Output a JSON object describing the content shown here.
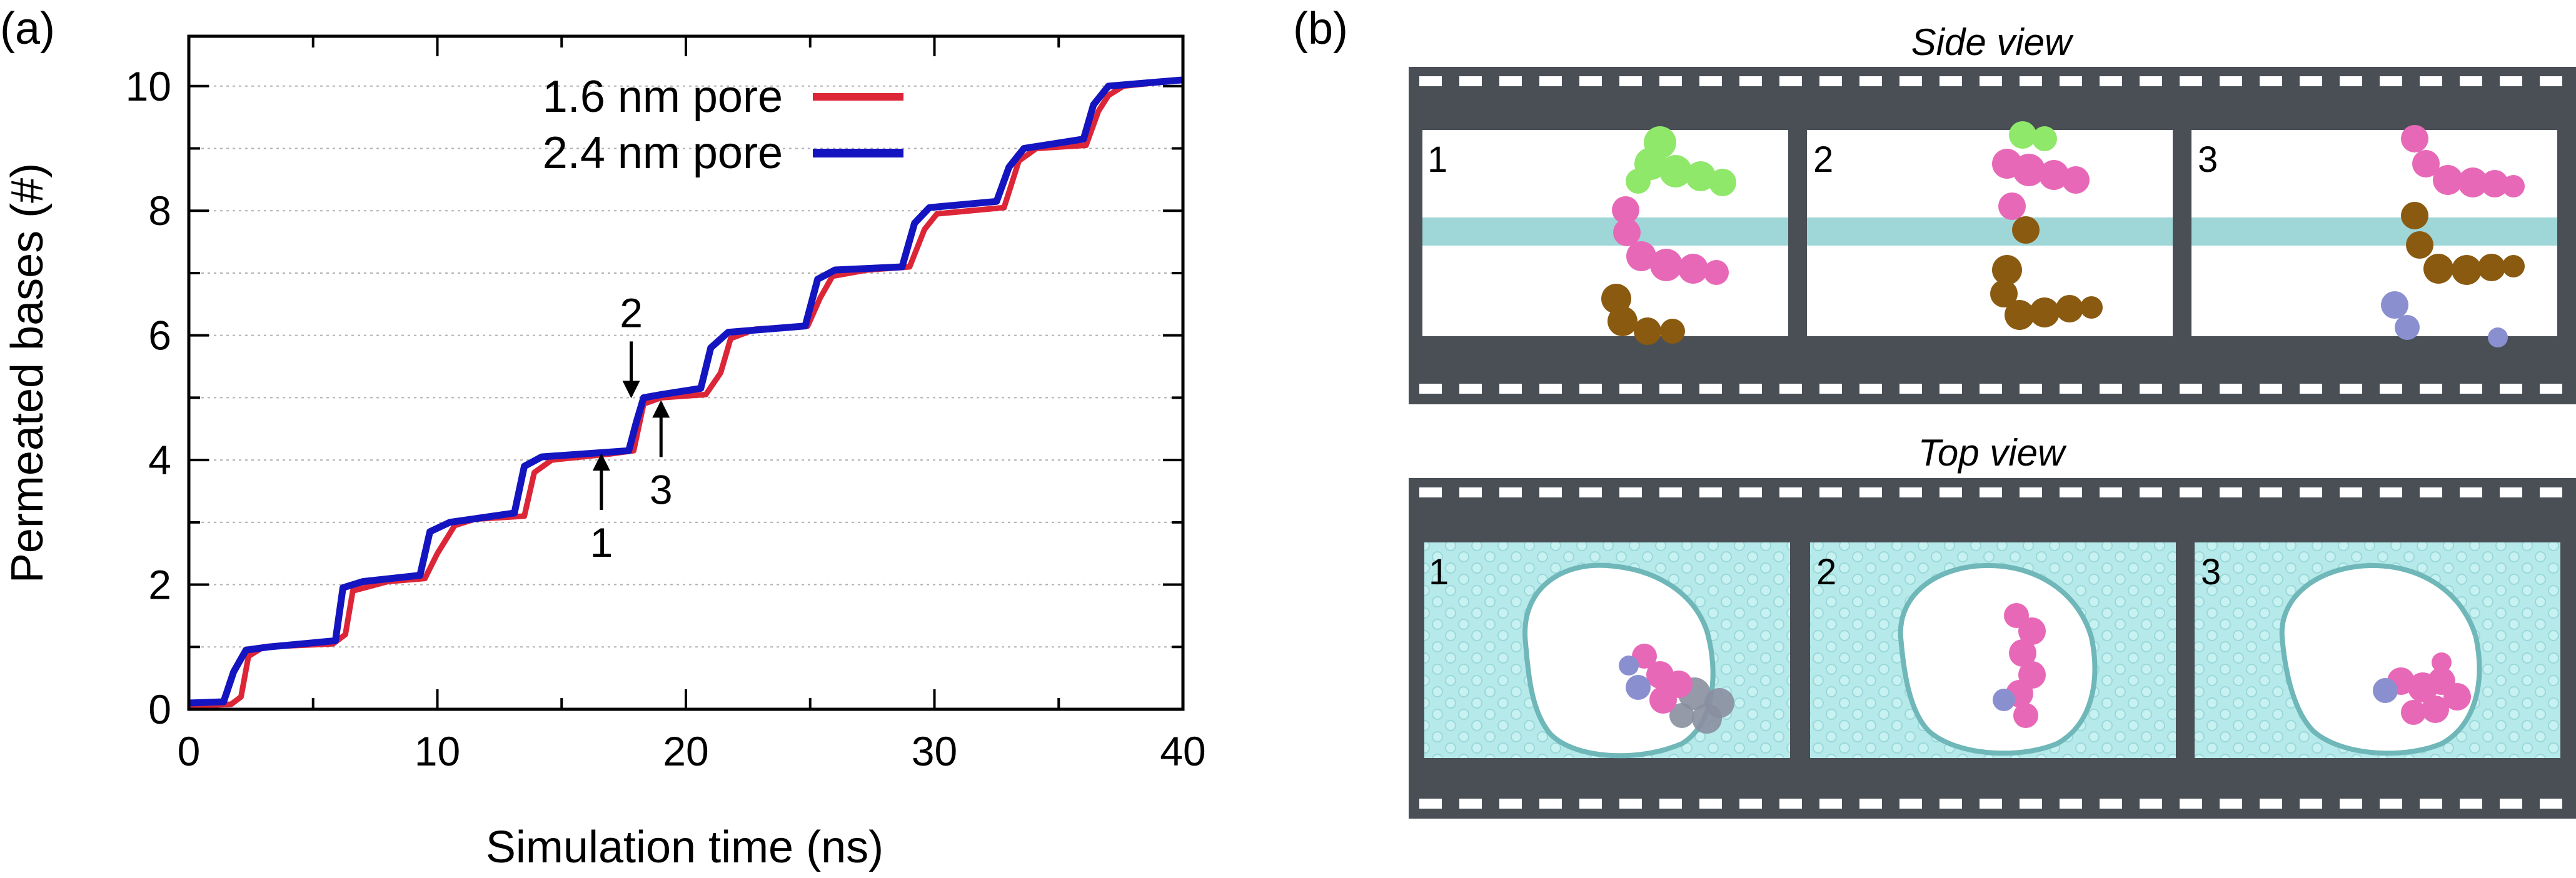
{
  "panel_a": {
    "label": "(a)"
  },
  "panel_b": {
    "label": "(b)",
    "side_view": {
      "title": "Side view",
      "frames": [
        "1",
        "2",
        "3"
      ]
    },
    "top_view": {
      "title": "Top view",
      "frames": [
        "1",
        "2",
        "3"
      ]
    }
  },
  "colors": {
    "series_1_6": "#dc2638",
    "series_2_4": "#1414c0",
    "film": "#4a4f56",
    "membrane": "#8ecfd0",
    "graphene": "#b6e9ea",
    "base_green": "#8fe86a",
    "base_pink": "#e868b8",
    "base_brown": "#8a5a10",
    "base_lavender": "#8a8fd0"
  },
  "chart_data": {
    "type": "line",
    "title": "",
    "xlabel": "Simulation time (ns)",
    "ylabel": "Permeated bases (#)",
    "xlim": [
      0,
      40
    ],
    "ylim": [
      0,
      10.8
    ],
    "xticks": [
      0,
      10,
      20,
      30,
      40
    ],
    "yticks": [
      0,
      2,
      4,
      6,
      8,
      10
    ],
    "grid": "horizontal dotted at every 1",
    "legend_position": "top-left",
    "series": [
      {
        "name": "1.6 nm pore",
        "color": "#dc2638",
        "points": [
          [
            0,
            0.05
          ],
          [
            1.7,
            0.08
          ],
          [
            2.1,
            0.2
          ],
          [
            2.4,
            0.85
          ],
          [
            3.0,
            1.0
          ],
          [
            5.8,
            1.05
          ],
          [
            6.3,
            1.2
          ],
          [
            6.6,
            1.9
          ],
          [
            8.0,
            2.05
          ],
          [
            9.5,
            2.1
          ],
          [
            10.0,
            2.5
          ],
          [
            10.7,
            2.95
          ],
          [
            11.5,
            3.05
          ],
          [
            13.5,
            3.1
          ],
          [
            13.9,
            3.8
          ],
          [
            14.6,
            4.0
          ],
          [
            17.0,
            4.1
          ],
          [
            17.9,
            4.15
          ],
          [
            18.3,
            4.9
          ],
          [
            19.0,
            5.0
          ],
          [
            20.8,
            5.05
          ],
          [
            21.4,
            5.4
          ],
          [
            21.8,
            5.95
          ],
          [
            22.8,
            6.1
          ],
          [
            24.9,
            6.15
          ],
          [
            25.4,
            6.6
          ],
          [
            25.9,
            6.95
          ],
          [
            27.3,
            7.05
          ],
          [
            29.0,
            7.1
          ],
          [
            29.6,
            7.7
          ],
          [
            30.1,
            7.95
          ],
          [
            32.8,
            8.05
          ],
          [
            33.4,
            8.8
          ],
          [
            34.1,
            9.0
          ],
          [
            36.1,
            9.05
          ],
          [
            36.6,
            9.6
          ],
          [
            37.0,
            9.85
          ],
          [
            37.6,
            10.0
          ],
          [
            40,
            10.1
          ]
        ]
      },
      {
        "name": "2.4 nm pore",
        "color": "#1414c0",
        "points": [
          [
            0,
            0.1
          ],
          [
            1.4,
            0.12
          ],
          [
            1.8,
            0.6
          ],
          [
            2.3,
            0.95
          ],
          [
            3.2,
            1.0
          ],
          [
            5.9,
            1.1
          ],
          [
            6.2,
            1.95
          ],
          [
            7.0,
            2.05
          ],
          [
            9.3,
            2.15
          ],
          [
            9.7,
            2.85
          ],
          [
            10.5,
            3.0
          ],
          [
            13.1,
            3.15
          ],
          [
            13.5,
            3.9
          ],
          [
            14.2,
            4.05
          ],
          [
            17.7,
            4.15
          ],
          [
            18.0,
            4.6
          ],
          [
            18.3,
            5.0
          ],
          [
            19.0,
            5.05
          ],
          [
            20.6,
            5.15
          ],
          [
            21.0,
            5.8
          ],
          [
            21.7,
            6.05
          ],
          [
            24.8,
            6.15
          ],
          [
            25.3,
            6.9
          ],
          [
            26.0,
            7.05
          ],
          [
            28.7,
            7.1
          ],
          [
            29.2,
            7.8
          ],
          [
            29.8,
            8.05
          ],
          [
            32.5,
            8.15
          ],
          [
            33.0,
            8.7
          ],
          [
            33.6,
            9.0
          ],
          [
            36.0,
            9.15
          ],
          [
            36.4,
            9.7
          ],
          [
            37.0,
            10.0
          ],
          [
            40,
            10.1
          ]
        ]
      }
    ],
    "annotations": [
      {
        "text": "1",
        "x": 16.6,
        "y": 4.15,
        "arrow": "up"
      },
      {
        "text": "2",
        "x": 17.8,
        "y": 4.95,
        "arrow": "down"
      },
      {
        "text": "3",
        "x": 19.0,
        "y": 5.0,
        "arrow": "up"
      }
    ]
  }
}
